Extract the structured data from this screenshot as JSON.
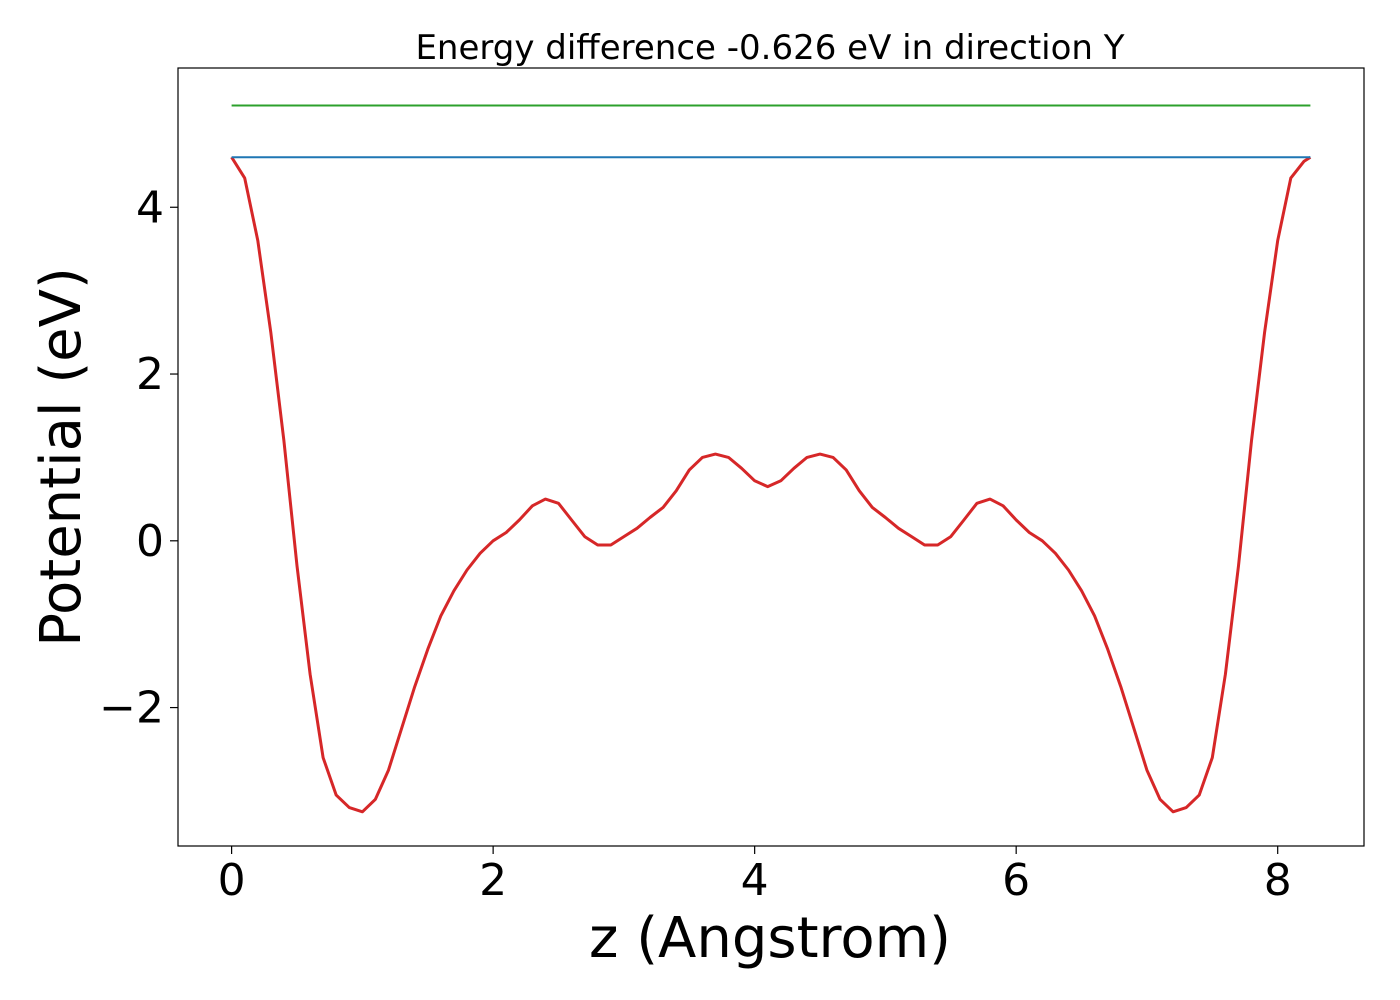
{
  "chart_data": {
    "type": "line",
    "title": "Energy difference -0.626 eV in direction Y",
    "xlabel": "z (Angstrom)",
    "ylabel": "Potential (eV)",
    "xlim": [
      -0.41,
      8.66
    ],
    "ylim": [
      -3.66,
      5.67
    ],
    "xticks": [
      0,
      2,
      4,
      6,
      8
    ],
    "yticks": [
      -2,
      0,
      2,
      4
    ],
    "xtick_labels": [
      "0",
      "2",
      "4",
      "6",
      "8"
    ],
    "ytick_labels": [
      "−2",
      "0",
      "2",
      "4"
    ],
    "grid": false,
    "series": [
      {
        "color": "#d62728",
        "style": "curve",
        "x": [
          0,
          0.1,
          0.2,
          0.3,
          0.4,
          0.5,
          0.6,
          0.7,
          0.8,
          0.9,
          1.0,
          1.1,
          1.2,
          1.3,
          1.4,
          1.5,
          1.6,
          1.7,
          1.8,
          1.9,
          2.0,
          2.1,
          2.2,
          2.3,
          2.4,
          2.5,
          2.6,
          2.7,
          2.8,
          2.9,
          3.0,
          3.1,
          3.2,
          3.3,
          3.4,
          3.5,
          3.6,
          3.7,
          3.8,
          3.9,
          4.0,
          4.1,
          4.2,
          4.3,
          4.4,
          4.5,
          4.6,
          4.7,
          4.8,
          4.9,
          5.0,
          5.1,
          5.2,
          5.3,
          5.4,
          5.5,
          5.6,
          5.7,
          5.8,
          5.9,
          6.0,
          6.1,
          6.2,
          6.3,
          6.4,
          6.5,
          6.6,
          6.7,
          6.8,
          6.9,
          7.0,
          7.1,
          7.2,
          7.3,
          7.4,
          7.5,
          7.6,
          7.7,
          7.8,
          7.9,
          8.0,
          8.1,
          8.2,
          8.25
        ],
        "y": [
          4.6,
          4.35,
          3.6,
          2.5,
          1.2,
          -0.3,
          -1.6,
          -2.6,
          -3.05,
          -3.2,
          -3.25,
          -3.1,
          -2.75,
          -2.25,
          -1.75,
          -1.3,
          -0.9,
          -0.6,
          -0.35,
          -0.15,
          0.0,
          0.1,
          0.25,
          0.42,
          0.5,
          0.45,
          0.25,
          0.05,
          -0.05,
          -0.05,
          0.05,
          0.15,
          0.28,
          0.4,
          0.6,
          0.85,
          1.0,
          1.04,
          1.0,
          0.87,
          0.72,
          0.65,
          0.72,
          0.87,
          1.0,
          1.04,
          1.0,
          0.85,
          0.6,
          0.4,
          0.28,
          0.15,
          0.05,
          -0.05,
          -0.05,
          0.05,
          0.25,
          0.45,
          0.5,
          0.42,
          0.25,
          0.1,
          0.0,
          -0.15,
          -0.35,
          -0.6,
          -0.9,
          -1.3,
          -1.75,
          -2.25,
          -2.75,
          -3.1,
          -3.25,
          -3.2,
          -3.05,
          -2.6,
          -1.6,
          -0.3,
          1.2,
          2.5,
          3.6,
          4.35,
          4.55,
          4.6
        ]
      },
      {
        "color": "#1f77b4",
        "style": "line",
        "x": [
          0,
          8.25
        ],
        "y": [
          4.6,
          4.6
        ]
      },
      {
        "color": "#2ca02c",
        "style": "line",
        "x": [
          0,
          8.25
        ],
        "y": [
          5.22,
          5.22
        ]
      }
    ]
  }
}
